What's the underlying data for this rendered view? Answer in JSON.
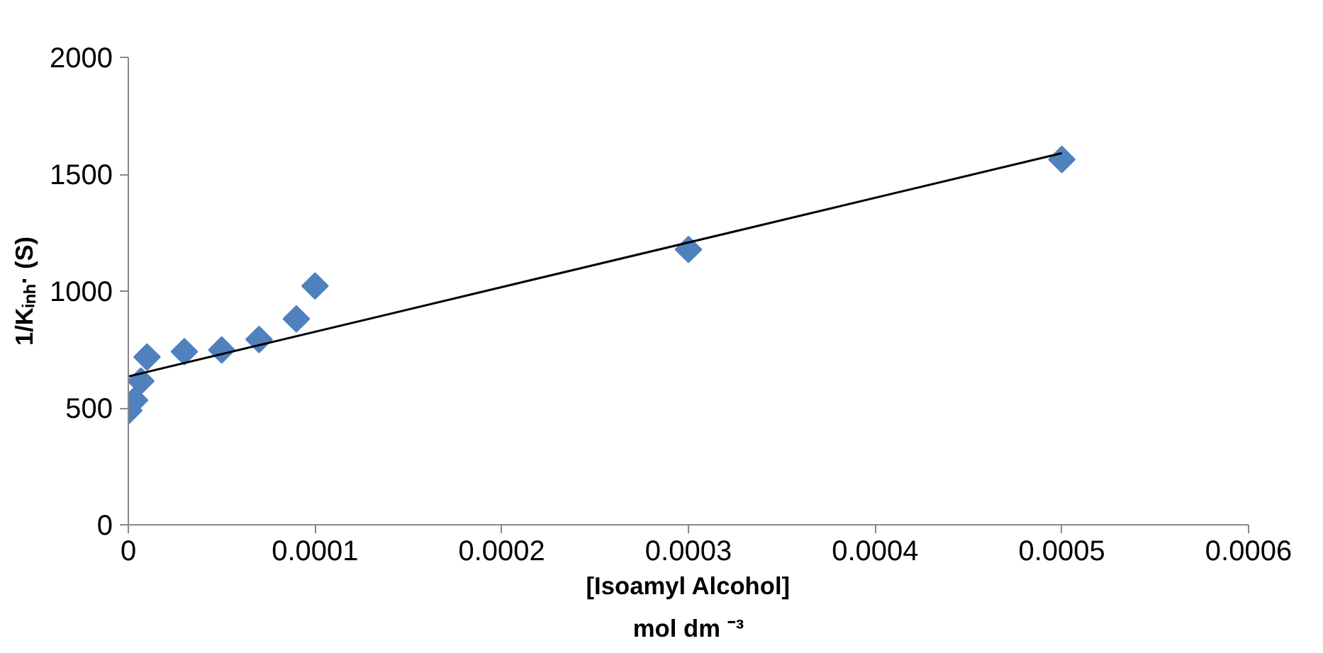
{
  "chart_data": {
    "type": "scatter",
    "xlabel": "[Isoamyl Alcohol]\nmol dm ⁻³",
    "ylabel": "1/Kᵢₙₕ· (S)",
    "xlim": [
      0,
      0.0006
    ],
    "xticks": [
      0,
      0.0001,
      0.0002,
      0.0003,
      0.0004,
      0.0005,
      0.0006
    ],
    "ylim": [
      0,
      2000
    ],
    "yticks": [
      0,
      500,
      1000,
      1500,
      2000
    ],
    "grid": false,
    "marker": "diamond",
    "series": [
      {
        "color": "#4f81bd",
        "x": [
          3e-07,
          3.4e-06,
          6.7e-06,
          1e-05,
          3e-05,
          5e-05,
          7e-05,
          9e-05,
          0.0001,
          0.0003,
          0.0005
        ],
        "values": [
          489,
          533,
          615,
          718,
          741,
          748,
          793,
          881,
          1022,
          1178,
          1563
        ]
      },
      {
        "type": "line",
        "marker": "none",
        "color": "#000000",
        "x": [
          0,
          0.0005
        ],
        "values": [
          635,
          1590
        ]
      }
    ]
  }
}
